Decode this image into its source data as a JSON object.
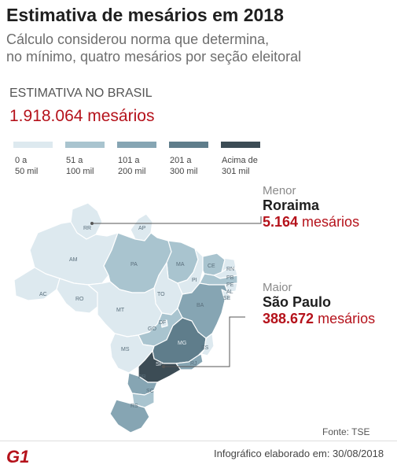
{
  "header": {
    "title": "Estimativa de mesários em 2018",
    "subtitle_line1": "Cálculo considerou norma que determina,",
    "subtitle_line2": "no mínimo, quatro mesários por seção eleitoral"
  },
  "national": {
    "label": "ESTIMATIVA NO BRASIL",
    "value": "1.918.064 mesários"
  },
  "legend": [
    {
      "line1": "0 a",
      "line2": "50 mil",
      "color": "#dde9ef"
    },
    {
      "line1": "51 a",
      "line2": "100 mil",
      "color": "#a9c4cf"
    },
    {
      "line1": "101 a",
      "line2": "200 mil",
      "color": "#86a5b3"
    },
    {
      "line1": "201 a",
      "line2": "300 mil",
      "color": "#5f7d8b"
    },
    {
      "line1": "Acima de",
      "line2": "301 mil",
      "color": "#3c4c55"
    }
  ],
  "callouts": {
    "min": {
      "tag": "Menor",
      "state": "Roraima",
      "number": "5.164",
      "unit": " mesários"
    },
    "max": {
      "tag": "Maior",
      "state": "São Paulo",
      "number": "388.672",
      "unit": " mesários"
    }
  },
  "states": [
    {
      "abbr": "RR",
      "level": 0
    },
    {
      "abbr": "AP",
      "level": 0
    },
    {
      "abbr": "AM",
      "level": 0
    },
    {
      "abbr": "PA",
      "level": 1
    },
    {
      "abbr": "MA",
      "level": 1
    },
    {
      "abbr": "PI",
      "level": 0
    },
    {
      "abbr": "CE",
      "level": 1
    },
    {
      "abbr": "RN",
      "level": 0
    },
    {
      "abbr": "PB",
      "level": 0
    },
    {
      "abbr": "PE",
      "level": 1
    },
    {
      "abbr": "AL",
      "level": 0
    },
    {
      "abbr": "SE",
      "level": 0
    },
    {
      "abbr": "AC",
      "level": 0
    },
    {
      "abbr": "RO",
      "level": 0
    },
    {
      "abbr": "TO",
      "level": 0
    },
    {
      "abbr": "BA",
      "level": 2
    },
    {
      "abbr": "MT",
      "level": 0
    },
    {
      "abbr": "DF",
      "level": 0
    },
    {
      "abbr": "GO",
      "level": 1
    },
    {
      "abbr": "MG",
      "level": 3
    },
    {
      "abbr": "ES",
      "level": 0
    },
    {
      "abbr": "MS",
      "level": 0
    },
    {
      "abbr": "SP",
      "level": 4
    },
    {
      "abbr": "RJ",
      "level": 2
    },
    {
      "abbr": "PR",
      "level": 2
    },
    {
      "abbr": "SC",
      "level": 1
    },
    {
      "abbr": "RS",
      "level": 2
    }
  ],
  "source": "Fonte: TSE",
  "logo": "G1",
  "credit": "Infográfico elaborado em: 30/08/2018"
}
